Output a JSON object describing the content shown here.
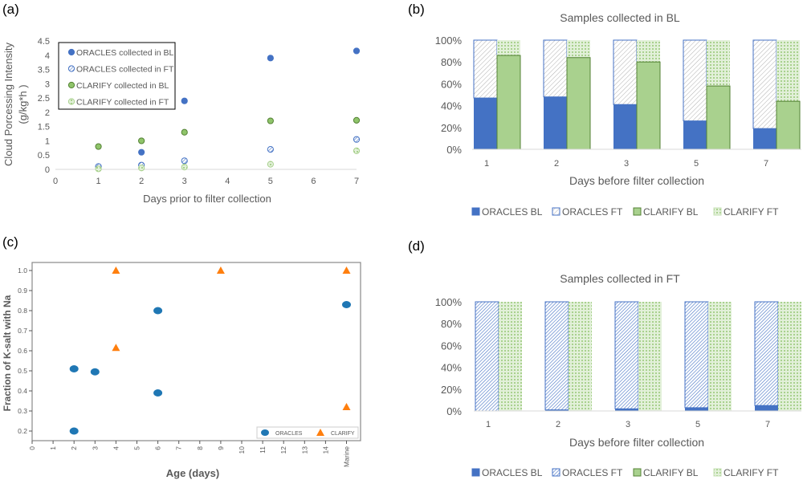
{
  "panels": {
    "a": "(a)",
    "b": "(b)",
    "c": "(c)",
    "d": "(d)"
  },
  "chart_data": [
    {
      "id": "a",
      "type": "scatter",
      "title": "",
      "xlabel": "Days prior to filter collection",
      "ylabel": [
        "Cloud Porcessing Intensity",
        "(g/kg*h )"
      ],
      "xlim": [
        0,
        7
      ],
      "ylim": [
        0,
        4.5
      ],
      "xticks": [
        "0",
        "1",
        "2",
        "3",
        "4",
        "5",
        "6",
        "7"
      ],
      "yticks": [
        "0",
        "0.5",
        "1",
        "1.5",
        "2",
        "2.5",
        "3",
        "3.5",
        "4",
        "4.5"
      ],
      "grid": false,
      "legend_position": "top-left",
      "series": [
        {
          "name": "ORACLES collected in BL",
          "color": "#4472c4",
          "marker": "filled-circle",
          "x": [
            2,
            3,
            5,
            7
          ],
          "y": [
            0.6,
            2.4,
            3.9,
            4.15
          ]
        },
        {
          "name": "ORACLES collected in FT",
          "color": "#4472c4",
          "marker": "hatched-circle",
          "x": [
            1,
            2,
            3,
            5,
            7
          ],
          "y": [
            0.1,
            0.15,
            0.3,
            0.7,
            1.05
          ]
        },
        {
          "name": "CLARIFY collected in BL",
          "color": "#70ad47",
          "marker": "filled-circle",
          "x": [
            1,
            2,
            3,
            5,
            7
          ],
          "y": [
            0.8,
            1.0,
            1.3,
            1.7,
            1.72
          ]
        },
        {
          "name": "CLARIFY collected in FT",
          "color": "#a9d18e",
          "marker": "dotted-circle",
          "x": [
            1,
            2,
            3,
            5,
            7
          ],
          "y": [
            0.02,
            0.05,
            0.08,
            0.18,
            0.65
          ]
        }
      ]
    },
    {
      "id": "b",
      "type": "bar",
      "stacked": "percent",
      "title": "Samples collected in BL",
      "xlabel": "Days before filter collection",
      "categories": [
        "1",
        "2",
        "3",
        "5",
        "7"
      ],
      "yticks": [
        "0%",
        "20%",
        "40%",
        "60%",
        "80%",
        "100%"
      ],
      "ylim": [
        0,
        100
      ],
      "legend_position": "bottom",
      "series": [
        {
          "name": "ORACLES BL",
          "stack": "ORACLES",
          "values": [
            47,
            48,
            41,
            26,
            19
          ]
        },
        {
          "name": "ORACLES FT",
          "stack": "ORACLES",
          "values": [
            53,
            52,
            59,
            74,
            81
          ]
        },
        {
          "name": "CLARIFY BL",
          "stack": "CLARIFY",
          "values": [
            86,
            84,
            80,
            58,
            44
          ]
        },
        {
          "name": "CLARIFY FT",
          "stack": "CLARIFY",
          "values": [
            14,
            16,
            20,
            42,
            56
          ]
        }
      ]
    },
    {
      "id": "c",
      "type": "scatter",
      "title": "",
      "xlabel": "Age (days)",
      "ylabel": "Fraction of K-salt with Na",
      "xticks": [
        "0",
        "1",
        "2",
        "3",
        "4",
        "5",
        "6",
        "7",
        "8",
        "9",
        "10",
        "11",
        "12",
        "13",
        "14",
        "Marine"
      ],
      "yticks": [
        "0.2",
        "0.3",
        "0.4",
        "0.5",
        "0.6",
        "0.7",
        "0.8",
        "0.9",
        "1.0"
      ],
      "ylim": [
        0.15,
        1.04
      ],
      "grid": false,
      "legend_position": "bottom-right",
      "series": [
        {
          "name": "ORACLES",
          "color": "#1f77b4",
          "marker": "circle",
          "x": [
            "2",
            "2",
            "3",
            "6",
            "6",
            "Marine"
          ],
          "y": [
            0.51,
            0.2,
            0.495,
            0.8,
            0.39,
            0.83
          ]
        },
        {
          "name": "CLARIFY",
          "color": "#ff7f0e",
          "marker": "triangle",
          "x": [
            "4",
            "4",
            "9",
            "Marine",
            "Marine"
          ],
          "y": [
            1.0,
            0.615,
            1.0,
            1.0,
            0.32
          ]
        }
      ]
    },
    {
      "id": "d",
      "type": "bar",
      "stacked": "percent",
      "title": "Samples collected in FT",
      "xlabel": "Days before filter collection",
      "categories": [
        "1",
        "2",
        "3",
        "5",
        "7"
      ],
      "yticks": [
        "0%",
        "20%",
        "40%",
        "60%",
        "80%",
        "100%"
      ],
      "ylim": [
        0,
        100
      ],
      "legend_position": "bottom",
      "series": [
        {
          "name": "ORACLES BL",
          "stack": "ORACLES",
          "values": [
            0,
            1,
            2,
            3,
            5
          ]
        },
        {
          "name": "ORACLES FT",
          "stack": "ORACLES",
          "values": [
            100,
            99,
            98,
            97,
            95
          ]
        },
        {
          "name": "CLARIFY BL",
          "stack": "CLARIFY",
          "values": [
            0,
            0,
            0,
            0,
            0
          ]
        },
        {
          "name": "CLARIFY FT",
          "stack": "CLARIFY",
          "values": [
            100,
            100,
            100,
            100,
            100
          ]
        }
      ]
    }
  ],
  "colors": {
    "oracles": "#4472c4",
    "clarify_bl": "#a9d18e",
    "clarify_bl_edge": "#548235",
    "clarify_ft": "#c5e0b4",
    "c_oracles": "#1f77b4",
    "c_clarify": "#ff7f0e"
  }
}
